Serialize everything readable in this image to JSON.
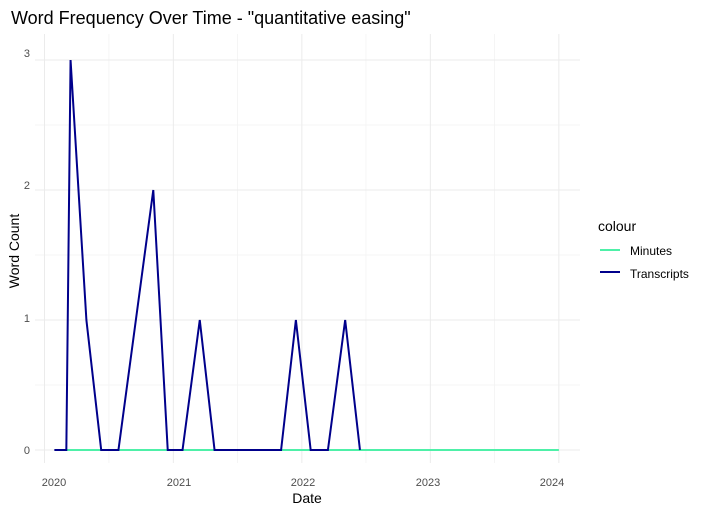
{
  "chart_data": {
    "type": "line",
    "title": "Word Frequency Over Time - \"quantitative easing\"",
    "xlabel": "Date",
    "ylabel": "Word Count",
    "x_ticks": [
      "2020",
      "2021",
      "2022",
      "2023",
      "2024"
    ],
    "y_ticks": [
      "0",
      "1",
      "2",
      "3"
    ],
    "xlim": [
      "2019-12-05",
      "2024-03-01"
    ],
    "ylim": [
      -0.1,
      3.2
    ],
    "grid": true,
    "legend": {
      "title": "colour",
      "placement": "right"
    },
    "series": [
      {
        "name": "Minutes",
        "color": "#4ef0a8",
        "points": [
          [
            "2020-03-03",
            0
          ],
          [
            "2024-01-01",
            0
          ]
        ]
      },
      {
        "name": "Transcripts",
        "color": "#00008b",
        "points": [
          [
            "2020-01-29",
            0
          ],
          [
            "2020-03-03",
            0
          ],
          [
            "2020-03-15",
            3
          ],
          [
            "2020-04-29",
            1
          ],
          [
            "2020-06-10",
            0
          ],
          [
            "2020-07-29",
            0
          ],
          [
            "2020-11-05",
            2
          ],
          [
            "2020-12-16",
            0
          ],
          [
            "2021-01-27",
            0
          ],
          [
            "2021-03-17",
            1
          ],
          [
            "2021-04-28",
            0
          ],
          [
            "2021-11-03",
            0
          ],
          [
            "2021-12-15",
            1
          ],
          [
            "2022-01-26",
            0
          ],
          [
            "2022-03-16",
            0
          ],
          [
            "2022-05-04",
            1
          ],
          [
            "2022-06-15",
            0
          ]
        ]
      }
    ]
  }
}
